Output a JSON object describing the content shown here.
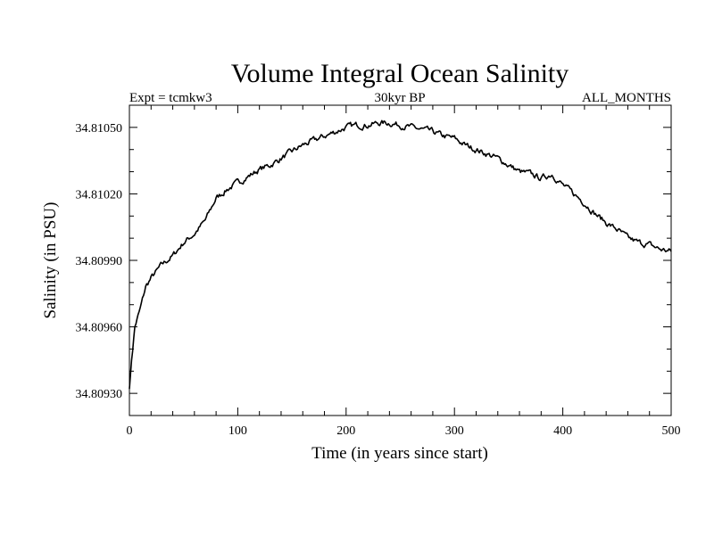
{
  "chart_data": {
    "type": "line",
    "title": "Volume Integral Ocean Salinity",
    "subtitle_left": "Expt = tcmkw3",
    "subtitle_center": "30kyr BP",
    "subtitle_right": "ALL_MONTHS",
    "xlabel": "Time (in years since start)",
    "ylabel": "Salinity (in PSU)",
    "xlim": [
      0,
      500
    ],
    "ylim": [
      34.8092,
      34.8106
    ],
    "x_ticks": [
      "0",
      "100",
      "200",
      "300",
      "400",
      "500"
    ],
    "y_ticks": [
      "34.80930",
      "34.80960",
      "34.80990",
      "34.81020",
      "34.81050"
    ],
    "grid": false,
    "series": [
      {
        "name": "salinity",
        "x": [
          0,
          2,
          5,
          10,
          15,
          20,
          25,
          30,
          40,
          50,
          60,
          70,
          80,
          90,
          100,
          110,
          120,
          130,
          140,
          150,
          160,
          170,
          180,
          190,
          200,
          210,
          220,
          230,
          240,
          250,
          260,
          270,
          280,
          290,
          300,
          310,
          320,
          330,
          340,
          350,
          360,
          370,
          380,
          390,
          400,
          410,
          420,
          430,
          440,
          450,
          460,
          470,
          480,
          490,
          500
        ],
        "y": [
          34.80932,
          34.80945,
          34.8096,
          34.80968,
          34.80978,
          34.80982,
          34.80985,
          34.80988,
          34.80992,
          34.80998,
          34.81002,
          34.81008,
          34.81018,
          34.81022,
          34.81025,
          34.81028,
          34.81031,
          34.81033,
          34.81036,
          34.81039,
          34.81042,
          34.81044,
          34.81046,
          34.81048,
          34.8105,
          34.81051,
          34.81051,
          34.81052,
          34.81052,
          34.81051,
          34.8105,
          34.81049,
          34.81048,
          34.81046,
          34.81045,
          34.81042,
          34.8104,
          34.81038,
          34.81036,
          34.81033,
          34.8103,
          34.81029,
          34.81027,
          34.81029,
          34.81024,
          34.8102,
          34.81016,
          34.81011,
          34.81007,
          34.81004,
          34.81,
          34.80998,
          34.80997,
          34.80995,
          34.80994
        ]
      }
    ]
  }
}
